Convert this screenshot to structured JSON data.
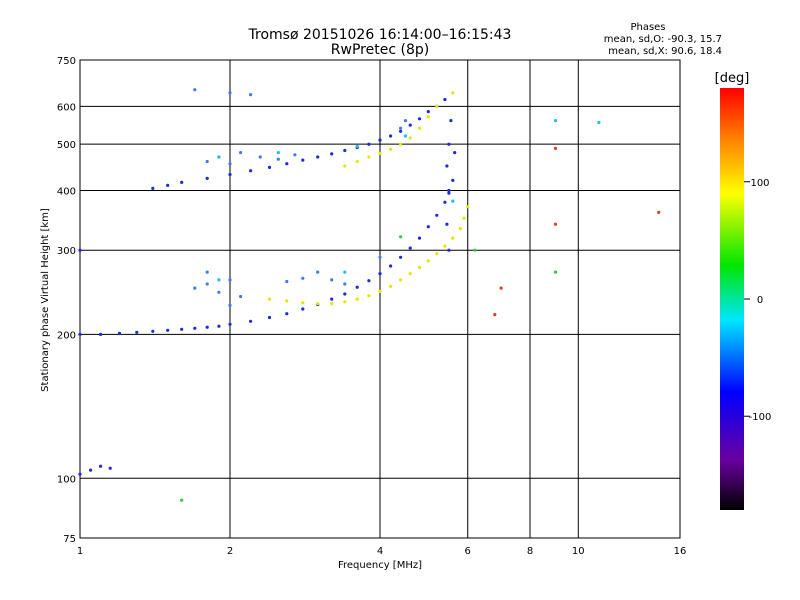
{
  "chart_data": {
    "type": "scatter",
    "title": "Tromsø 20151026 16:14:00–16:15:43",
    "subtitle": "RwPretec (8p)",
    "xlabel": "Frequency [MHz]",
    "ylabel": "Stationary phase Virtual Height [km]",
    "x_scale": "log",
    "y_scale": "log",
    "xlim": [
      1,
      16
    ],
    "ylim": [
      75,
      750
    ],
    "x_ticks": [
      1,
      2,
      4,
      6,
      8,
      10,
      16
    ],
    "y_ticks": [
      75,
      100,
      200,
      300,
      400,
      500,
      600,
      750
    ],
    "grid": true,
    "stats": {
      "heading": "Phases",
      "line_o": "mean, sd,O: -90.3, 15.7",
      "line_x": "mean, sd,X:  90.6, 18.4"
    },
    "colorbar": {
      "label": "[deg]",
      "range": [
        -180,
        180
      ],
      "ticks": [
        100,
        0,
        -100
      ],
      "palette": "rainbow (black-violet-blue-cyan-green-yellow-red)"
    },
    "series": [
      {
        "color": "#1a2be0",
        "points": [
          [
            1.0,
            200
          ],
          [
            1.1,
            200
          ],
          [
            1.2,
            201
          ],
          [
            1.3,
            202
          ],
          [
            1.4,
            203
          ],
          [
            1.5,
            204
          ],
          [
            1.6,
            205
          ],
          [
            1.7,
            206
          ],
          [
            1.8,
            207
          ],
          [
            1.9,
            208
          ],
          [
            2.0,
            210
          ],
          [
            2.2,
            213
          ],
          [
            2.4,
            217
          ],
          [
            2.6,
            221
          ],
          [
            2.8,
            226
          ],
          [
            3.0,
            231
          ],
          [
            3.2,
            237
          ],
          [
            3.4,
            243
          ],
          [
            3.6,
            251
          ],
          [
            3.8,
            259
          ],
          [
            4.0,
            268
          ],
          [
            4.2,
            278
          ],
          [
            4.4,
            290
          ],
          [
            4.6,
            303
          ],
          [
            4.8,
            318
          ],
          [
            5.0,
            336
          ],
          [
            5.2,
            355
          ],
          [
            5.4,
            378
          ],
          [
            5.5,
            395
          ],
          [
            1.4,
            404
          ],
          [
            1.5,
            410
          ],
          [
            1.6,
            416
          ],
          [
            1.8,
            424
          ],
          [
            2.0,
            432
          ],
          [
            2.2,
            440
          ],
          [
            2.4,
            447
          ],
          [
            2.6,
            455
          ],
          [
            2.8,
            463
          ],
          [
            3.0,
            470
          ],
          [
            3.2,
            477
          ],
          [
            3.4,
            485
          ],
          [
            3.6,
            492
          ],
          [
            3.8,
            500
          ],
          [
            4.0,
            510
          ],
          [
            4.2,
            520
          ],
          [
            4.4,
            532
          ],
          [
            4.6,
            548
          ],
          [
            4.8,
            565
          ],
          [
            5.0,
            585
          ],
          [
            5.2,
            600
          ],
          [
            5.4,
            620
          ],
          [
            5.45,
            450
          ],
          [
            5.5,
            500
          ],
          [
            5.55,
            560
          ],
          [
            5.5,
            400
          ],
          [
            5.45,
            340
          ],
          [
            5.6,
            420
          ],
          [
            5.65,
            480
          ],
          [
            5.5,
            300
          ],
          [
            1.0,
            102
          ],
          [
            1.05,
            104
          ],
          [
            1.1,
            106
          ],
          [
            1.15,
            105
          ],
          [
            1.0,
            300
          ]
        ]
      },
      {
        "color": "#e6e600",
        "points": [
          [
            2.4,
            237
          ],
          [
            2.6,
            235
          ],
          [
            2.8,
            233
          ],
          [
            3.0,
            232
          ],
          [
            3.2,
            232
          ],
          [
            3.4,
            234
          ],
          [
            3.6,
            237
          ],
          [
            3.8,
            241
          ],
          [
            4.0,
            246
          ],
          [
            4.2,
            252
          ],
          [
            4.4,
            260
          ],
          [
            4.6,
            268
          ],
          [
            4.8,
            276
          ],
          [
            5.0,
            285
          ],
          [
            5.2,
            295
          ],
          [
            5.4,
            306
          ],
          [
            5.6,
            318
          ],
          [
            5.8,
            333
          ],
          [
            5.9,
            350
          ],
          [
            6.0,
            370
          ],
          [
            3.4,
            450
          ],
          [
            3.6,
            460
          ],
          [
            3.8,
            470
          ],
          [
            4.0,
            478
          ],
          [
            4.2,
            488
          ],
          [
            4.4,
            500
          ],
          [
            4.6,
            515
          ],
          [
            4.8,
            540
          ],
          [
            5.0,
            570
          ],
          [
            5.2,
            600
          ],
          [
            5.6,
            640
          ]
        ]
      },
      {
        "color": "#3c7cf0",
        "points": [
          [
            1.7,
            250
          ],
          [
            1.8,
            255
          ],
          [
            1.9,
            245
          ],
          [
            2.0,
            260
          ],
          [
            2.1,
            240
          ],
          [
            1.8,
            270
          ],
          [
            2.0,
            230
          ],
          [
            3.0,
            270
          ],
          [
            3.2,
            260
          ],
          [
            3.4,
            255
          ],
          [
            2.6,
            258
          ],
          [
            2.8,
            262
          ],
          [
            4.0,
            290
          ],
          [
            1.8,
            460
          ],
          [
            1.9,
            470
          ],
          [
            2.0,
            455
          ],
          [
            2.1,
            480
          ],
          [
            2.3,
            470
          ],
          [
            2.5,
            465
          ],
          [
            2.7,
            475
          ],
          [
            1.7,
            650
          ],
          [
            2.0,
            640
          ],
          [
            2.2,
            635
          ],
          [
            4.4,
            540
          ],
          [
            4.5,
            560
          ]
        ]
      },
      {
        "color": "#22c0dd",
        "points": [
          [
            1.9,
            470
          ],
          [
            2.5,
            480
          ],
          [
            3.6,
            495
          ],
          [
            4.5,
            520
          ],
          [
            5.6,
            380
          ],
          [
            9.0,
            560
          ],
          [
            11.0,
            555
          ],
          [
            1.9,
            260
          ],
          [
            3.4,
            270
          ]
        ]
      },
      {
        "color": "#e53c1c",
        "points": [
          [
            9.0,
            490
          ],
          [
            7.0,
            250
          ],
          [
            14.5,
            360
          ],
          [
            6.8,
            220
          ],
          [
            9.0,
            340
          ]
        ]
      },
      {
        "color": "#2ecc40",
        "points": [
          [
            1.6,
            90
          ],
          [
            6.2,
            300
          ],
          [
            9.0,
            270
          ],
          [
            4.4,
            320
          ]
        ]
      }
    ]
  }
}
